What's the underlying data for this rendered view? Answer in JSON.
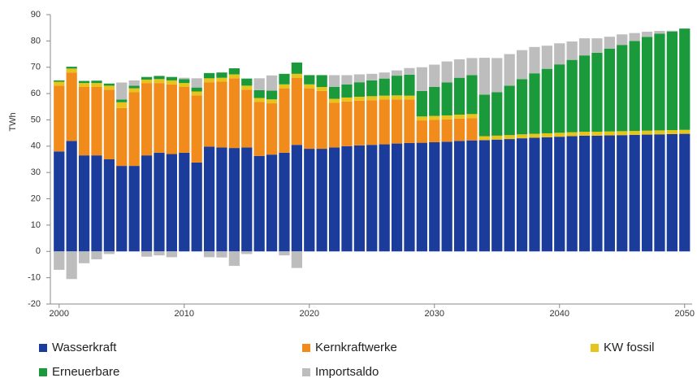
{
  "chart_data": {
    "type": "bar",
    "stacked": true,
    "y_label": "TWh",
    "x": [
      2000,
      2001,
      2002,
      2003,
      2004,
      2005,
      2006,
      2007,
      2008,
      2009,
      2010,
      2011,
      2012,
      2013,
      2014,
      2015,
      2016,
      2017,
      2018,
      2019,
      2020,
      2021,
      2022,
      2023,
      2024,
      2025,
      2026,
      2027,
      2028,
      2029,
      2030,
      2031,
      2032,
      2033,
      2034,
      2035,
      2036,
      2037,
      2038,
      2039,
      2040,
      2041,
      2042,
      2043,
      2044,
      2045,
      2046,
      2047,
      2048,
      2049,
      2050
    ],
    "xlim": [
      1999.3,
      2050.6
    ],
    "xticks": [
      2000,
      2010,
      2020,
      2030,
      2040,
      2050
    ],
    "ylim": [
      -20,
      90
    ],
    "yticks": [
      -20,
      -10,
      0,
      10,
      20,
      30,
      40,
      50,
      60,
      70,
      80,
      90
    ],
    "legend_position": "bottom",
    "series": [
      {
        "name": "Wasserkraft",
        "color": "#1c3c9c",
        "values": [
          38,
          42,
          36.5,
          36.5,
          35,
          32.5,
          32.5,
          36.5,
          37.5,
          37,
          37.5,
          33.8,
          39.8,
          39.5,
          39.3,
          39.5,
          36.3,
          36.8,
          37.5,
          40.5,
          39,
          39,
          39.5,
          40,
          40.3,
          40.5,
          40.7,
          41,
          41.2,
          41.3,
          41.5,
          41.7,
          42,
          42.2,
          42.3,
          42.5,
          42.7,
          43,
          43.2,
          43.4,
          43.6,
          43.8,
          44,
          44,
          44.1,
          44.2,
          44.3,
          44.4,
          44.5,
          44.6,
          44.7
        ]
      },
      {
        "name": "Kernkraftwerke",
        "color": "#f18c1c",
        "values": [
          25,
          26,
          26,
          26,
          26.5,
          22,
          28,
          27.5,
          26.5,
          26.5,
          25,
          25.5,
          24.5,
          25,
          26.5,
          22,
          20.5,
          19.5,
          24.5,
          25.5,
          23,
          22,
          17,
          17,
          17,
          17,
          17,
          16.8,
          16.5,
          8.5,
          8.5,
          8.5,
          8.5,
          8.5,
          0,
          0,
          0,
          0,
          0,
          0,
          0,
          0,
          0,
          0,
          0,
          0,
          0,
          0,
          0,
          0,
          0
        ]
      },
      {
        "name": "KW fossil",
        "color": "#e6c41c",
        "values": [
          1.5,
          1.5,
          1.5,
          1.5,
          1.5,
          2.2,
          1.5,
          1.3,
          1.5,
          1.5,
          1.5,
          1.5,
          1.5,
          1.5,
          1.5,
          1.5,
          1.5,
          1.5,
          1.5,
          1.5,
          1.5,
          1.5,
          1.5,
          1.5,
          1.5,
          1.5,
          1.5,
          1.5,
          1.5,
          1.5,
          1.5,
          1.5,
          1.5,
          1.5,
          1.5,
          1.5,
          1.5,
          1.5,
          1.5,
          1.5,
          1.5,
          1.5,
          1.5,
          1.5,
          1.5,
          1.5,
          1.5,
          1.5,
          1.5,
          1.5,
          1.5
        ]
      },
      {
        "name": "Erneuerbare",
        "color": "#1a9a3a",
        "values": [
          0.5,
          0.7,
          0.8,
          0.9,
          0.8,
          1,
          1,
          1,
          1.2,
          1.3,
          1.5,
          1.5,
          2,
          2,
          2.3,
          2.7,
          3,
          3.3,
          4,
          4.3,
          3.5,
          4.5,
          4.5,
          5,
          5.5,
          6,
          6.5,
          7.5,
          8,
          9.7,
          11,
          12.5,
          14,
          14.8,
          15.8,
          16.5,
          18.8,
          21,
          23,
          24.5,
          26,
          27.5,
          29,
          30,
          31.5,
          32.8,
          34.2,
          35.6,
          36.8,
          37.5,
          38.5
        ]
      },
      {
        "name": "Importsaldo",
        "color": "#bdbdbd",
        "values": [
          -7,
          -10.5,
          -4.5,
          -3,
          -1,
          6.5,
          2,
          -2,
          -1.5,
          -2.2,
          0.5,
          3.5,
          -2.2,
          -2.3,
          -5.5,
          -1,
          4.5,
          5.8,
          -1.5,
          -6.3,
          0,
          0,
          4.5,
          3.5,
          3,
          2.5,
          2.3,
          2,
          2.5,
          9,
          8.5,
          8,
          7,
          6.5,
          14,
          13,
          12,
          11,
          10,
          8.8,
          8,
          7,
          6.5,
          5.5,
          4.5,
          4,
          3,
          2,
          1,
          0.3,
          0
        ]
      }
    ]
  }
}
